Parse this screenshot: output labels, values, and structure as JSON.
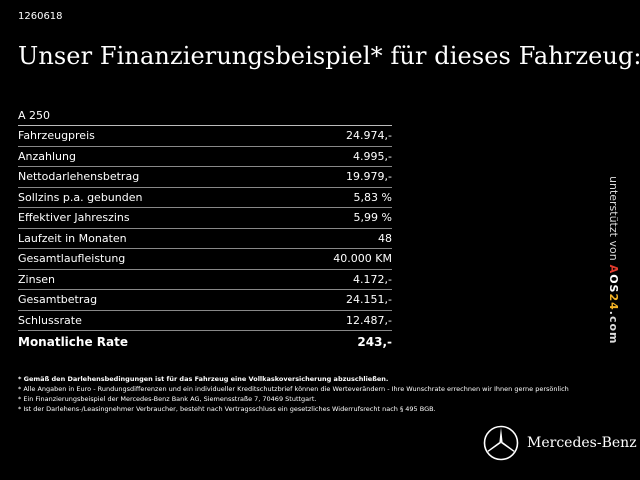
{
  "code": "1260618",
  "headline": "Unser Finanzierungsbeispiel* für dieses Fahrzeug:",
  "model": "A 250",
  "rows": [
    {
      "label": "Fahrzeugpreis",
      "value": "24.974,-"
    },
    {
      "label": "Anzahlung",
      "value": "4.995,-"
    },
    {
      "label": "Nettodarlehensbetrag",
      "value": "19.979,-"
    },
    {
      "label": "Sollzins p.a. gebunden",
      "value": "5,83 %"
    },
    {
      "label": "Effektiver Jahreszins",
      "value": "5,99 %"
    },
    {
      "label": "Laufzeit in Monaten",
      "value": "48"
    },
    {
      "label": "Gesamtlaufleistung",
      "value": "40.000 KM"
    },
    {
      "label": "Zinsen",
      "value": "4.172,-"
    },
    {
      "label": "Gesamtbetrag",
      "value": "24.151,-"
    },
    {
      "label": "Schlussrate",
      "value": "12.487,-"
    }
  ],
  "total": {
    "label": "Monatliche Rate",
    "value": "243,-"
  },
  "notes": [
    "* Gemäß den Darlehensbedingungen ist für das Fahrzeug eine Vollkaskoversicherung abzuschließen.",
    "* Alle Angaben in Euro - Rundungsdifferenzen und ein individueller Kreditschutzbrief können die Werteverändern - Ihre Wunschrate errechnen wir Ihnen gerne persönlich",
    "* Ein Finanzierungsbeispiel der Mercedes-Benz Bank AG, Siemensstraße 7, 70469 Stuttgart.",
    "* Ist der Darlehens-/Leasingnehmer Verbraucher, besteht nach Vertragsschluss ein gesetzliches Widerrufsrecht nach § 495 BGB."
  ],
  "side": {
    "prefix": "unterstützt von",
    "brand_a": "A",
    "brand_o": "O",
    "brand_s": "S",
    "brand_n": "24",
    "brand_suffix": ".com"
  },
  "logo_text": "Mercedes-Benz",
  "colors": {
    "background": "#000000",
    "text": "#ffffff",
    "brand_red": "#e23a2d",
    "brand_yellow": "#f3b325"
  }
}
